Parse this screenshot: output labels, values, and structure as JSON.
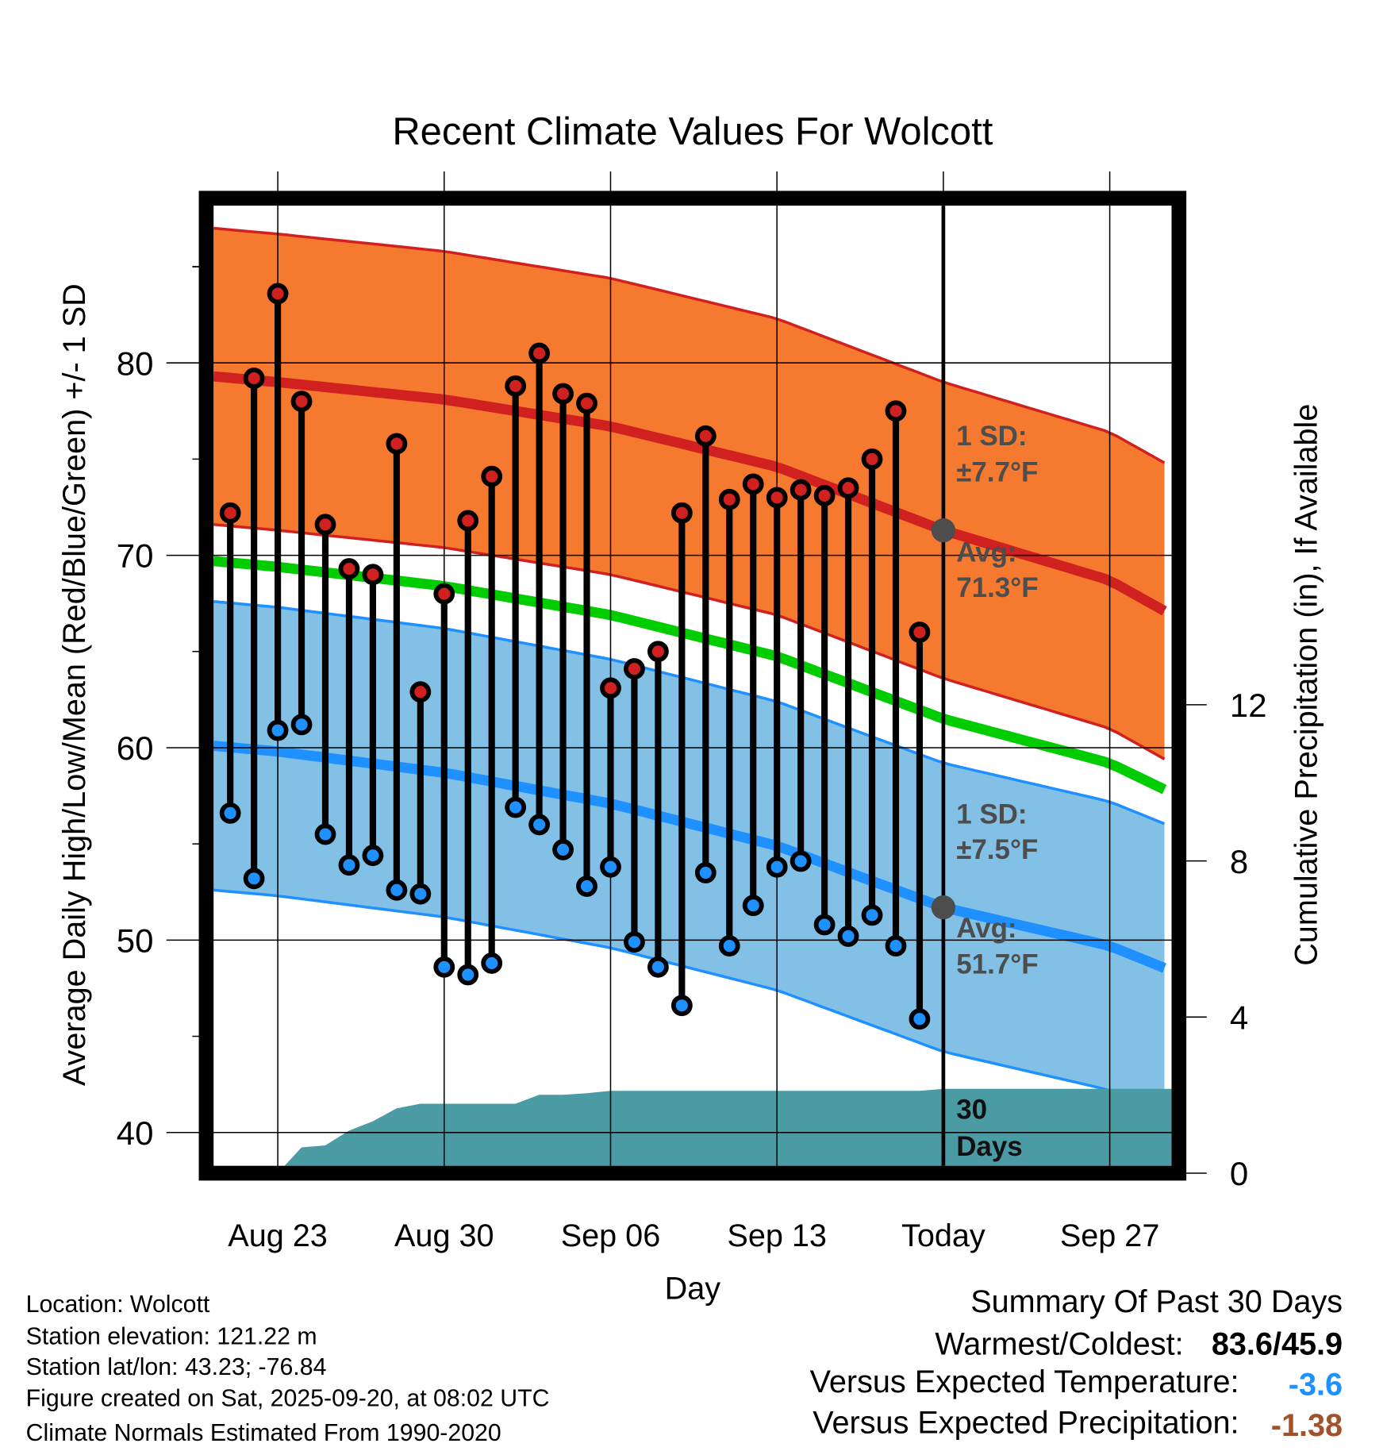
{
  "chart_data": {
    "type": "line",
    "title": "Recent Climate Values For Wolcott",
    "xlabel": "Day",
    "ylabel": "Average Daily High/Low/Mean (Red/Blue/Green) +/- 1 SD",
    "y2label": "Cumulative Precipitation (in), If Available",
    "ylim": [
      38.3,
      88.3
    ],
    "y_ticks": [
      "40",
      "50",
      "60",
      "70",
      "80"
    ],
    "y_tick_values": [
      40,
      50,
      60,
      70,
      80
    ],
    "y2lim": [
      -0.2,
      24.8
    ],
    "y2_ticks": [
      "0",
      "4",
      "8",
      "12"
    ],
    "y2_tick_values": [
      0,
      4,
      8,
      12
    ],
    "x_unit": "days since Aug 23",
    "xlim": [
      -2.7,
      37.6
    ],
    "x_ticks": [
      "Aug 23",
      "Aug 30",
      "Sep 06",
      "Sep 13",
      "Today",
      "Sep 27"
    ],
    "x_tick_values": [
      0,
      7,
      14,
      21,
      28,
      35
    ],
    "grid": true,
    "today": 28,
    "observed": {
      "dates": [
        "Aug 21",
        "Aug 22",
        "Aug 23",
        "Aug 24",
        "Aug 25",
        "Aug 26",
        "Aug 27",
        "Aug 28",
        "Aug 29",
        "Aug 30",
        "Aug 31",
        "Sep 01",
        "Sep 02",
        "Sep 03",
        "Sep 04",
        "Sep 05",
        "Sep 06",
        "Sep 07",
        "Sep 08",
        "Sep 09",
        "Sep 10",
        "Sep 11",
        "Sep 12",
        "Sep 13",
        "Sep 14",
        "Sep 15",
        "Sep 16",
        "Sep 17",
        "Sep 18",
        "Sep 19"
      ],
      "x": [
        -2,
        -1,
        0,
        1,
        2,
        3,
        4,
        5,
        6,
        7,
        8,
        9,
        10,
        11,
        12,
        13,
        14,
        15,
        16,
        17,
        18,
        19,
        20,
        21,
        22,
        23,
        24,
        25,
        26,
        27
      ],
      "high": [
        72.2,
        79.2,
        83.6,
        78.0,
        71.6,
        69.3,
        69.0,
        75.8,
        62.9,
        68.0,
        71.8,
        74.1,
        78.8,
        80.5,
        78.4,
        77.9,
        63.1,
        64.1,
        65.0,
        72.2,
        76.2,
        72.9,
        73.7,
        73.0,
        73.4,
        73.1,
        73.5,
        75.0,
        77.5,
        66.0
      ],
      "low": [
        56.6,
        53.2,
        60.9,
        61.2,
        55.5,
        53.9,
        54.4,
        52.6,
        52.4,
        48.6,
        48.2,
        48.8,
        56.9,
        56.0,
        54.7,
        52.8,
        53.8,
        49.9,
        48.6,
        46.6,
        53.5,
        49.7,
        51.8,
        53.8,
        54.1,
        50.8,
        50.2,
        51.3,
        49.7,
        45.9
      ]
    },
    "normals": {
      "x": [
        -2.7,
        0,
        7,
        14,
        21,
        28,
        35,
        37.6
      ],
      "avg_high": [
        79.3,
        79.0,
        78.1,
        76.7,
        74.6,
        71.3,
        68.7,
        66.9
      ],
      "avg_low": [
        60.1,
        59.8,
        58.7,
        57.1,
        54.9,
        51.7,
        49.7,
        48.4
      ],
      "high_sd": 7.7,
      "low_sd": 7.5
    },
    "precipitation": {
      "x": [
        0,
        1,
        2,
        3,
        4,
        5,
        6,
        10,
        11,
        12,
        13,
        14,
        27,
        28,
        37.6
      ],
      "cumulative": [
        0,
        0.66,
        0.71,
        1.09,
        1.33,
        1.66,
        1.78,
        1.78,
        2.01,
        2.01,
        2.05,
        2.11,
        2.11,
        2.16,
        2.16
      ]
    },
    "annotations": {
      "high_sd_line1": "1 SD:",
      "high_sd_line2": "±7.7°F",
      "high_avg_line1": "Avg:",
      "high_avg_line2": "71.3°F",
      "low_sd_line1": "1 SD:",
      "low_sd_line2": "±7.5°F",
      "low_avg_line1": "Avg:",
      "low_avg_line2": "51.7°F",
      "precip_line1": "30",
      "precip_line2": "Days"
    },
    "colors": {
      "high_band": "#f5792e",
      "high_line": "#d02020",
      "low_band": "#82c0e6",
      "low_line": "#1e90ff",
      "mean_line": "#00cc00",
      "precip": "#4a9ba4",
      "annotation": "#4d4d4d"
    }
  },
  "footer": {
    "location": "Location: Wolcott",
    "elevation": "Station elevation: 121.22 m",
    "latlon": "Station lat/lon: 43.23; -76.84",
    "created": "Figure created on Sat, 2025-09-20, at 08:02 UTC",
    "normals": "Climate Normals Estimated From 1990-2020"
  },
  "summary": {
    "title": "Summary Of Past 30 Days",
    "warmest_label": "Warmest/Coldest:",
    "warmest_value": "83.6/45.9",
    "temp_label": "Versus Expected Temperature:",
    "temp_value": "-3.6",
    "temp_color": "#1e90ff",
    "precip_label": "Versus Expected Precipitation:",
    "precip_value": "-1.38",
    "precip_color": "#a0522d"
  }
}
